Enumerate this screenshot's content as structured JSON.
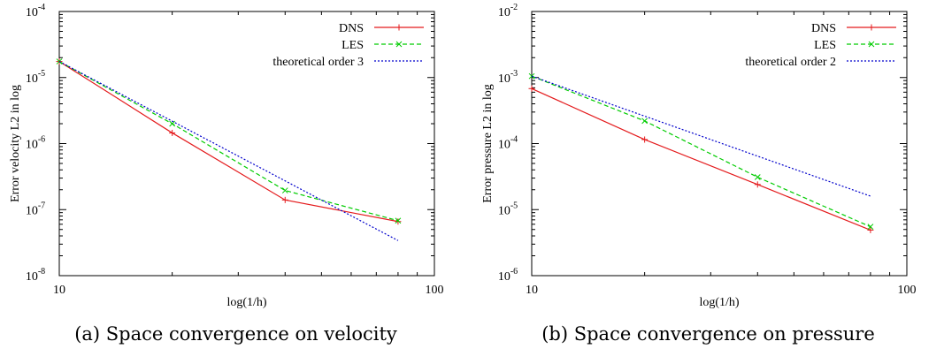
{
  "chart_data": [
    {
      "type": "line",
      "xscale": "log",
      "yscale": "log",
      "xlim": [
        10,
        100
      ],
      "ylim": [
        1e-08,
        0.0001
      ],
      "xlabel": "log(1/h)",
      "ylabel": "Error velocity L2 in log",
      "xticks": [
        {
          "value": 10,
          "label": "10"
        },
        {
          "value": 100,
          "label": "100"
        }
      ],
      "yticks": [
        {
          "value": 1e-08,
          "base": "10",
          "exp": "-8"
        },
        {
          "value": 1e-07,
          "base": "10",
          "exp": "-7"
        },
        {
          "value": 1e-06,
          "base": "10",
          "exp": "-6"
        },
        {
          "value": 1e-05,
          "base": "10",
          "exp": "-5"
        },
        {
          "value": 0.0001,
          "base": "10",
          "exp": "-4"
        }
      ],
      "legend_position": "top-right",
      "grid": false,
      "caption": "(a) Space convergence on velocity",
      "series": [
        {
          "name": "DNS",
          "color": "#e41a1c",
          "style": "solid",
          "marker": "plus",
          "x": [
            10,
            20,
            40,
            80
          ],
          "y": [
            1.75e-05,
            1.45e-06,
            1.4e-07,
            6.6e-08
          ]
        },
        {
          "name": "LES",
          "color": "#00cc00",
          "style": "dashed",
          "marker": "cross",
          "x": [
            10,
            20,
            40,
            80
          ],
          "y": [
            1.75e-05,
            2e-06,
            1.95e-07,
            6.8e-08
          ]
        },
        {
          "name": "theoretical order 3",
          "color": "#0000cc",
          "style": "dotted",
          "marker": "none",
          "x": [
            10,
            80
          ],
          "y": [
            1.75e-05,
            3.4e-08
          ]
        }
      ]
    },
    {
      "type": "line",
      "xscale": "log",
      "yscale": "log",
      "xlim": [
        10,
        100
      ],
      "ylim": [
        1e-06,
        0.01
      ],
      "xlabel": "log(1/h)",
      "ylabel": "Error pressure L2 in log",
      "xticks": [
        {
          "value": 10,
          "label": "10"
        },
        {
          "value": 100,
          "label": "100"
        }
      ],
      "yticks": [
        {
          "value": 1e-06,
          "base": "10",
          "exp": "-6"
        },
        {
          "value": 1e-05,
          "base": "10",
          "exp": "-5"
        },
        {
          "value": 0.0001,
          "base": "10",
          "exp": "-4"
        },
        {
          "value": 0.001,
          "base": "10",
          "exp": "-3"
        },
        {
          "value": 0.01,
          "base": "10",
          "exp": "-2"
        }
      ],
      "legend_position": "top-right",
      "grid": false,
      "caption": "(b) Space convergence on pressure",
      "series": [
        {
          "name": "DNS",
          "color": "#e41a1c",
          "style": "solid",
          "marker": "plus",
          "x": [
            10,
            20,
            40,
            80
          ],
          "y": [
            0.00068,
            0.000115,
            2.4e-05,
            4.9e-06
          ]
        },
        {
          "name": "LES",
          "color": "#00cc00",
          "style": "dashed",
          "marker": "cross",
          "x": [
            10,
            20,
            40,
            80
          ],
          "y": [
            0.00105,
            0.00022,
            3.1e-05,
            5.5e-06
          ]
        },
        {
          "name": "theoretical order 2",
          "color": "#0000cc",
          "style": "dotted",
          "marker": "none",
          "x": [
            10,
            80
          ],
          "y": [
            0.00105,
            1.6e-05
          ]
        }
      ]
    }
  ]
}
